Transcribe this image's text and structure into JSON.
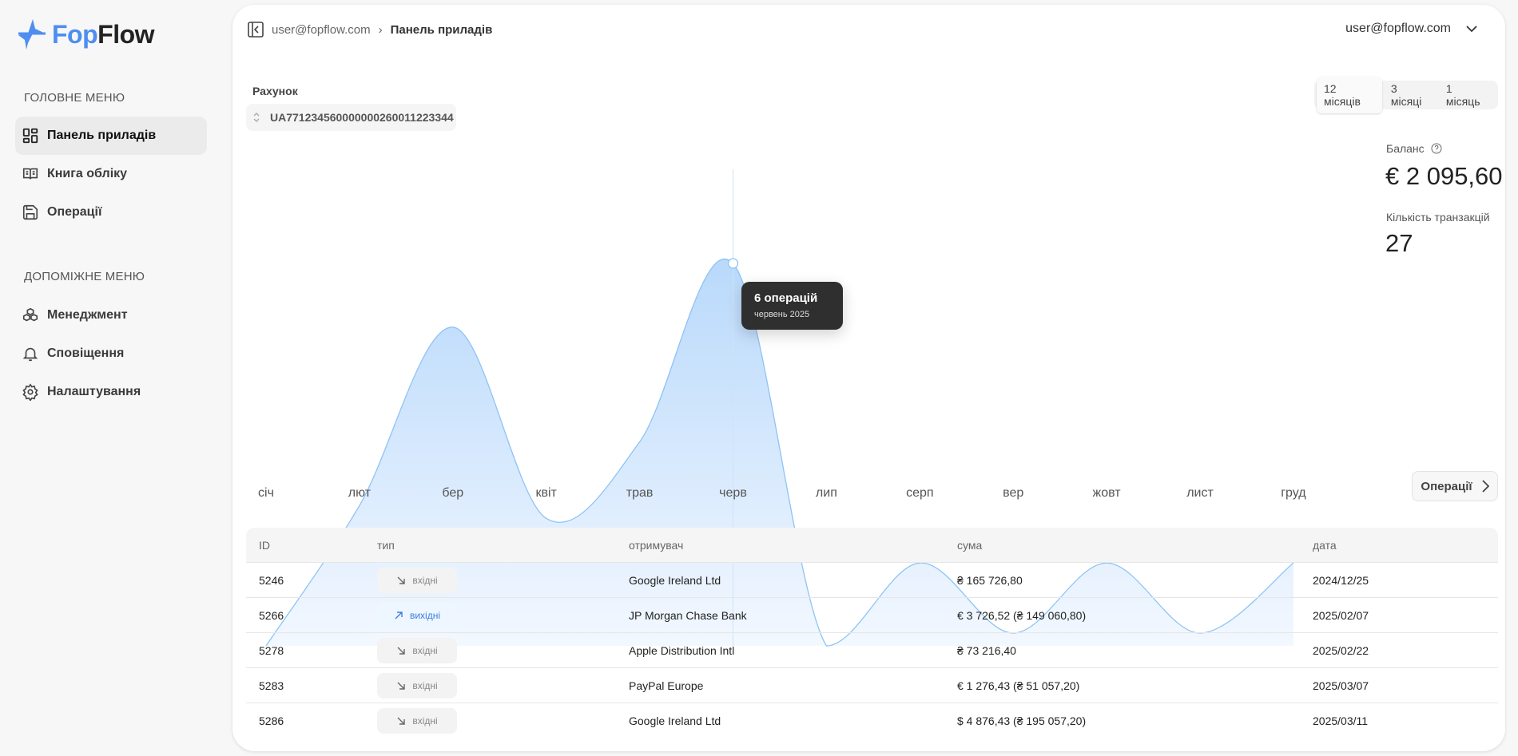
{
  "brand": {
    "part1": "Fop",
    "part2": "Flow",
    "accent": "#4f8ef0"
  },
  "sidebar": {
    "main_title": "ГОЛОВНЕ МЕНЮ",
    "main_items": [
      {
        "label": "Панель приладів",
        "icon": "dashboard-grid-icon",
        "active": true
      },
      {
        "label": "Книга обліку",
        "icon": "book-icon"
      },
      {
        "label": "Операції",
        "icon": "save-icon"
      }
    ],
    "aux_title": "ДОПОМІЖНЕ МЕНЮ",
    "aux_items": [
      {
        "label": "Менеджмент",
        "icon": "boxes-icon"
      },
      {
        "label": "Сповіщення",
        "icon": "bell-icon"
      },
      {
        "label": "Налаштування",
        "icon": "gear-icon"
      }
    ]
  },
  "header": {
    "breadcrumb_root": "user@fopflow.com",
    "breadcrumb_current": "Панель приладів",
    "user": "user@fopflow.com"
  },
  "account": {
    "label": "Рахунок",
    "value": "UA771234560000000260011223344"
  },
  "period": {
    "options": [
      "12 місяців",
      "3 місяці",
      "1 місяць"
    ],
    "selected": "12 місяців"
  },
  "stats": {
    "balance_label": "Баланс",
    "balance": "€ 2 095,60",
    "tx_label": "Кількість транзакцій",
    "tx_count": "27"
  },
  "operations_button": "Операції",
  "chart_data": {
    "type": "area",
    "categories": [
      "січ",
      "лют",
      "бер",
      "квіт",
      "трав",
      "черв",
      "лип",
      "серп",
      "вер",
      "жовт",
      "лист",
      "груд"
    ],
    "values": [
      0,
      2.2,
      5,
      2,
      3.2,
      6,
      0,
      1.3,
      0.2,
      1.3,
      0.2,
      1.3
    ],
    "ylim": [
      0,
      6
    ],
    "grid": false,
    "color": "#8ec3f5",
    "tooltip": {
      "category": "черв",
      "title": "6 операцій",
      "subtitle": "червень 2025"
    }
  },
  "table": {
    "headers": [
      "ID",
      "тип",
      "отримувач",
      "сума",
      "дата"
    ],
    "rows": [
      {
        "id": "5246",
        "type": "вхідні",
        "dir": "in",
        "payee": "Google Ireland Ltd",
        "amount": "₴ 165 726,80",
        "date": "2024/12/25"
      },
      {
        "id": "5266",
        "type": "вихідні",
        "dir": "out",
        "payee": "JP Morgan Chase Bank",
        "amount": "€ 3 726,52 (₴ 149 060,80)",
        "date": "2025/02/07"
      },
      {
        "id": "5278",
        "type": "вхідні",
        "dir": "in",
        "payee": "Apple Distribution Intl",
        "amount": "₴ 73 216,40",
        "date": "2025/02/22"
      },
      {
        "id": "5283",
        "type": "вхідні",
        "dir": "in",
        "payee": "PayPal Europe",
        "amount": "€ 1 276,43 (₴ 51 057,20)",
        "date": "2025/03/07"
      },
      {
        "id": "5286",
        "type": "вхідні",
        "dir": "in",
        "payee": "Google Ireland Ltd",
        "amount": "$ 4 876,43 (₴ 195 057,20)",
        "date": "2025/03/11"
      }
    ]
  }
}
